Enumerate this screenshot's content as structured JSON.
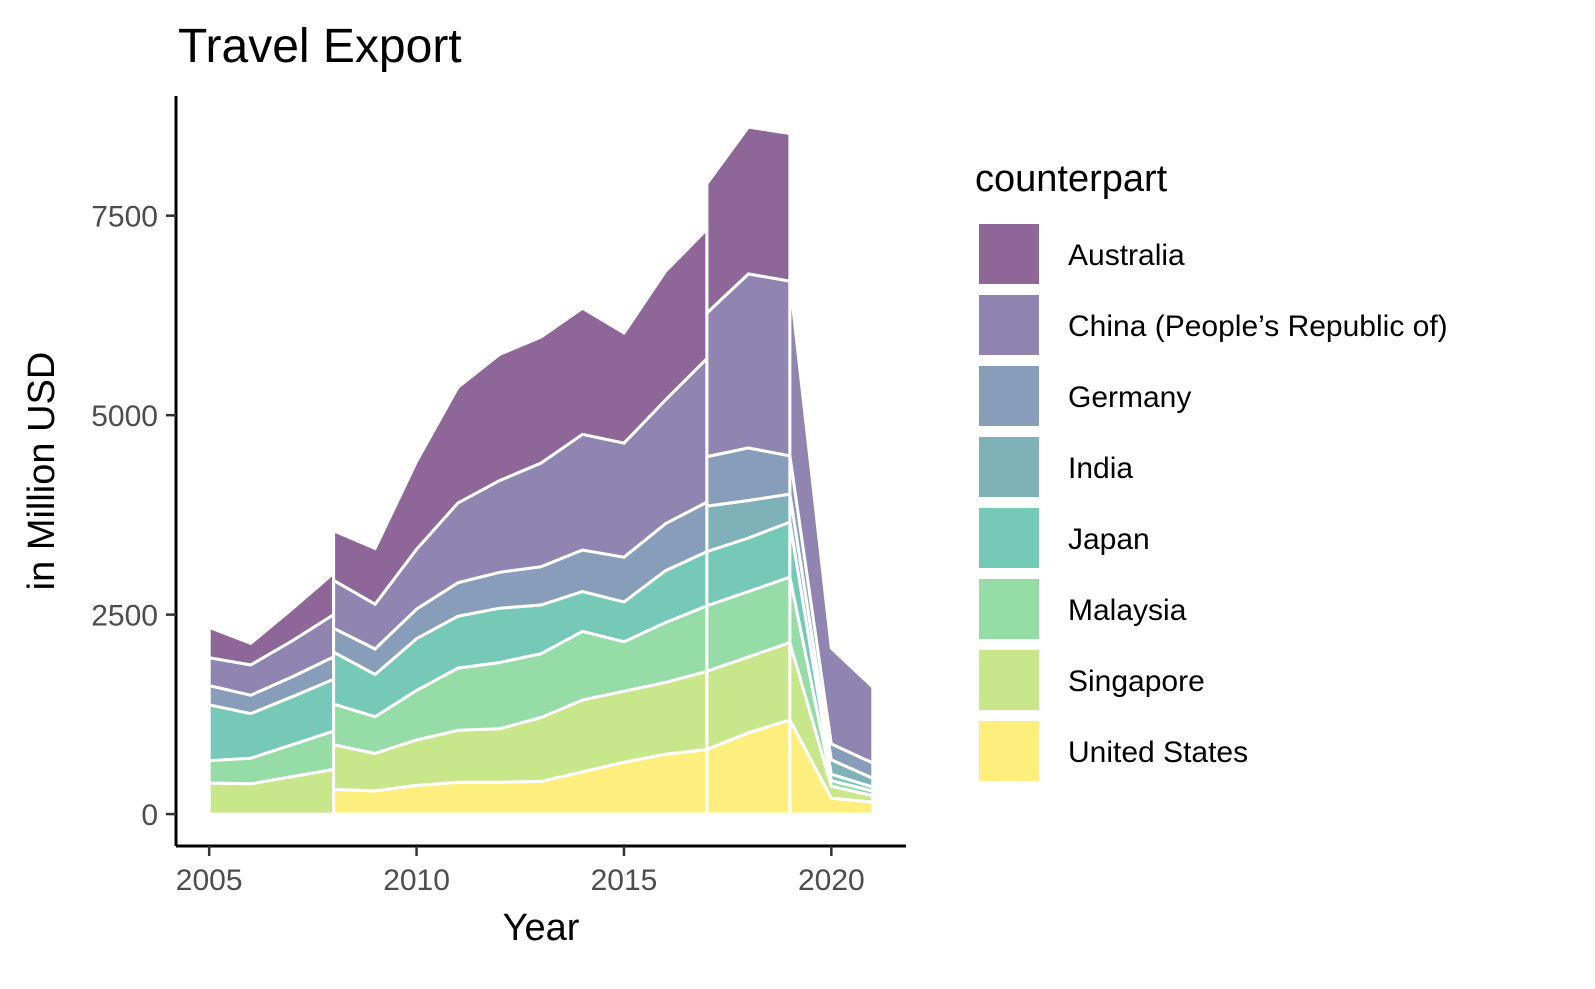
{
  "chart_data": {
    "type": "area",
    "title": "Travel Export",
    "xlabel": "Year",
    "ylabel": "in Million USD",
    "xlim": [
      2004.2,
      2021.8
    ],
    "ylim": [
      -400,
      9000
    ],
    "x_ticks": [
      2005,
      2010,
      2015,
      2020
    ],
    "x_tick_labels": [
      "2005",
      "2010",
      "2015",
      "2020"
    ],
    "y_ticks": [
      0,
      2500,
      5000,
      7500
    ],
    "y_tick_labels": [
      "0",
      "2500",
      "5000",
      "7500"
    ],
    "grid": false,
    "legend_position": "right",
    "legend_title": "counterpart",
    "stack_order_bottom_to_top": [
      "United States",
      "Singapore",
      "Malaysia",
      "Japan",
      "India",
      "Germany",
      "China (People’s Republic of)",
      "Australia"
    ],
    "series": [
      {
        "name": "Australia",
        "color": "#8e6698",
        "segments": [
          {
            "x": [
              2005,
              2006,
              2007,
              2008
            ],
            "values": [
              380,
              270,
              400,
              520
            ]
          },
          {
            "x": [
              2008,
              2009,
              2010,
              2011,
              2012,
              2013,
              2014,
              2015,
              2016,
              2017
            ],
            "values": [
              620,
              700,
              1100,
              1450,
              1580,
              1580,
              1580,
              1380,
              1610,
              1620
            ]
          },
          {
            "x": [
              2017,
              2018,
              2019
            ],
            "values": [
              1620,
              1840,
              1850
            ]
          },
          {
            "x": [
              2019,
              2020
            ],
            "values": [
              1850,
              120
            ]
          }
        ]
      },
      {
        "name": "China (People’s Republic of)",
        "color": "#8f85b0",
        "segments": [
          {
            "x": [
              2005,
              2006,
              2007,
              2008
            ],
            "values": [
              350,
              380,
              450,
              530
            ]
          },
          {
            "x": [
              2008,
              2009,
              2010,
              2011,
              2012,
              2013,
              2014,
              2015,
              2016,
              2017
            ],
            "values": [
              600,
              560,
              750,
              1000,
              1150,
              1300,
              1450,
              1430,
              1550,
              1800
            ]
          },
          {
            "x": [
              2017,
              2018,
              2019
            ],
            "values": [
              1800,
              2180,
              2190
            ]
          },
          {
            "x": [
              2019,
              2020,
              2021
            ],
            "values": [
              2190,
              1200,
              950
            ]
          }
        ]
      },
      {
        "name": "Germany",
        "color": "#889db9",
        "segments": [
          {
            "x": [
              2005,
              2006,
              2007,
              2008
            ],
            "values": [
              240,
              230,
              250,
              280
            ]
          },
          {
            "x": [
              2008,
              2009,
              2010,
              2011,
              2012,
              2013,
              2014,
              2015,
              2016,
              2017
            ],
            "values": [
              300,
              320,
              370,
              420,
              450,
              480,
              520,
              560,
              590,
              620
            ]
          },
          {
            "x": [
              2017,
              2018,
              2019
            ],
            "values": [
              620,
              660,
              480
            ]
          },
          {
            "x": [
              2019,
              2020,
              2021
            ],
            "values": [
              480,
              200,
              190
            ]
          }
        ]
      },
      {
        "name": "India",
        "color": "#7fb1b8",
        "segments": [
          {
            "x": [
              2017,
              2018,
              2019
            ],
            "values": [
              570,
              470,
              350
            ]
          },
          {
            "x": [
              2019,
              2020,
              2021
            ],
            "values": [
              350,
              180,
              110
            ]
          }
        ]
      },
      {
        "name": "Japan",
        "color": "#76c8b7",
        "segments": [
          {
            "x": [
              2005,
              2006,
              2007,
              2008
            ],
            "values": [
              700,
              560,
              600,
              650
            ]
          },
          {
            "x": [
              2008,
              2009,
              2010,
              2011,
              2012,
              2013,
              2014,
              2015,
              2016,
              2017
            ],
            "values": [
              650,
              530,
              650,
              650,
              680,
              610,
              500,
              500,
              650,
              680
            ]
          },
          {
            "x": [
              2017,
              2018,
              2019
            ],
            "values": [
              680,
              670,
              690
            ]
          },
          {
            "x": [
              2019,
              2020,
              2021
            ],
            "values": [
              690,
              80,
              50
            ]
          }
        ]
      },
      {
        "name": "Malaysia",
        "color": "#95dca6",
        "segments": [
          {
            "x": [
              2005,
              2006,
              2007,
              2008
            ],
            "values": [
              280,
              320,
              400,
              480
            ]
          },
          {
            "x": [
              2008,
              2009,
              2010,
              2011,
              2012,
              2013,
              2014,
              2015,
              2016,
              2017
            ],
            "values": [
              510,
              460,
              620,
              780,
              830,
              800,
              860,
              620,
              750,
              820
            ]
          },
          {
            "x": [
              2017,
              2018,
              2019
            ],
            "values": [
              820,
              820,
              820
            ]
          },
          {
            "x": [
              2019,
              2020,
              2021
            ],
            "values": [
              820,
              70,
              60
            ]
          }
        ]
      },
      {
        "name": "Singapore",
        "color": "#c8e78b",
        "segments": [
          {
            "x": [
              2005,
              2006,
              2007,
              2008
            ],
            "values": [
              390,
              380,
              470,
              560
            ]
          },
          {
            "x": [
              2008,
              2009,
              2010,
              2011,
              2012,
              2013,
              2014,
              2015,
              2016,
              2017
            ],
            "values": [
              560,
              470,
              570,
              650,
              670,
              800,
              900,
              890,
              900,
              980
            ]
          },
          {
            "x": [
              2017,
              2018,
              2019
            ],
            "values": [
              980,
              950,
              970
            ]
          },
          {
            "x": [
              2019,
              2020,
              2021
            ],
            "values": [
              970,
              150,
              80
            ]
          }
        ]
      },
      {
        "name": "United States",
        "color": "#fdee7d",
        "segments": [
          {
            "x": [
              2008,
              2009,
              2010,
              2011,
              2012,
              2013,
              2014,
              2015,
              2016,
              2017
            ],
            "values": [
              310,
              290,
              360,
              400,
              400,
              410,
              530,
              650,
              750,
              810
            ]
          },
          {
            "x": [
              2017,
              2018,
              2019
            ],
            "values": [
              810,
              1020,
              1180
            ]
          },
          {
            "x": [
              2019,
              2020,
              2021
            ],
            "values": [
              1180,
              200,
              150
            ]
          }
        ]
      }
    ]
  }
}
